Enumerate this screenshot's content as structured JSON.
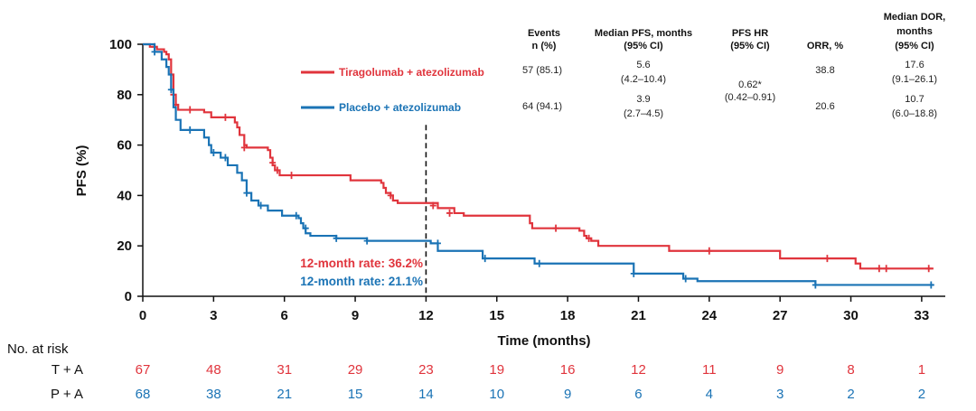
{
  "colors": {
    "tiragolumab": "#e0343c",
    "placebo": "#1a73b5",
    "axis": "#111111"
  },
  "chart_data": {
    "type": "line",
    "subtype": "kaplan-meier",
    "xlabel": "Time (months)",
    "ylabel": "PFS (%)",
    "xlim": [
      0,
      34
    ],
    "ylim": [
      0,
      100
    ],
    "xticks": [
      0,
      3,
      6,
      9,
      12,
      15,
      18,
      21,
      24,
      27,
      30,
      33
    ],
    "yticks": [
      0,
      20,
      40,
      60,
      80,
      100
    ],
    "reference_line": {
      "x": 12,
      "style": "dashed"
    },
    "series": [
      {
        "name": "Tiragolumab + atezolizumab",
        "color_key": "tiragolumab",
        "steps": [
          [
            0,
            100
          ],
          [
            0.3,
            99
          ],
          [
            0.6,
            98
          ],
          [
            0.9,
            97
          ],
          [
            1.0,
            96
          ],
          [
            1.1,
            94
          ],
          [
            1.2,
            88
          ],
          [
            1.3,
            80
          ],
          [
            1.4,
            76
          ],
          [
            1.5,
            74
          ],
          [
            2.6,
            73
          ],
          [
            2.9,
            71
          ],
          [
            3.9,
            69
          ],
          [
            4.0,
            67
          ],
          [
            4.1,
            64
          ],
          [
            4.3,
            60
          ],
          [
            4.4,
            59
          ],
          [
            5.3,
            58
          ],
          [
            5.4,
            55
          ],
          [
            5.5,
            52
          ],
          [
            5.6,
            50
          ],
          [
            5.8,
            48
          ],
          [
            8.8,
            46
          ],
          [
            10.1,
            45
          ],
          [
            10.2,
            43
          ],
          [
            10.3,
            41
          ],
          [
            10.5,
            40
          ],
          [
            10.6,
            38
          ],
          [
            10.8,
            37
          ],
          [
            12.5,
            35
          ],
          [
            13.2,
            33
          ],
          [
            13.6,
            32
          ],
          [
            16.4,
            29
          ],
          [
            16.5,
            27
          ],
          [
            17.1,
            27
          ],
          [
            18.5,
            26
          ],
          [
            18.7,
            24
          ],
          [
            18.8,
            23
          ],
          [
            19.0,
            22
          ],
          [
            19.3,
            20
          ],
          [
            22.3,
            18
          ],
          [
            27.0,
            15
          ],
          [
            30.2,
            13
          ],
          [
            30.4,
            11
          ]
        ],
        "end": 33.5,
        "censors": [
          [
            0.5,
            99
          ],
          [
            1.3,
            80
          ],
          [
            1.4,
            76
          ],
          [
            2.0,
            74
          ],
          [
            3.5,
            71
          ],
          [
            4.3,
            59
          ],
          [
            5.5,
            53
          ],
          [
            5.7,
            50
          ],
          [
            6.3,
            48
          ],
          [
            10.5,
            40
          ],
          [
            12.3,
            36
          ],
          [
            13.0,
            33
          ],
          [
            17.5,
            27
          ],
          [
            18.9,
            23
          ],
          [
            24.0,
            18
          ],
          [
            29.0,
            15
          ],
          [
            31.2,
            11
          ],
          [
            31.5,
            11
          ],
          [
            33.3,
            11
          ]
        ]
      },
      {
        "name": "Placebo + atezolizumab",
        "color_key": "placebo",
        "steps": [
          [
            0,
            100
          ],
          [
            0.5,
            97
          ],
          [
            0.8,
            94
          ],
          [
            1.0,
            91
          ],
          [
            1.1,
            88
          ],
          [
            1.2,
            82
          ],
          [
            1.3,
            75
          ],
          [
            1.4,
            70
          ],
          [
            1.6,
            66
          ],
          [
            2.6,
            63
          ],
          [
            2.8,
            60
          ],
          [
            2.9,
            57
          ],
          [
            3.3,
            55
          ],
          [
            3.6,
            52
          ],
          [
            4.0,
            49
          ],
          [
            4.2,
            46
          ],
          [
            4.4,
            41
          ],
          [
            4.6,
            38
          ],
          [
            4.9,
            36
          ],
          [
            5.3,
            34
          ],
          [
            5.9,
            32
          ],
          [
            6.6,
            31
          ],
          [
            6.7,
            29
          ],
          [
            6.8,
            27
          ],
          [
            6.9,
            25
          ],
          [
            7.1,
            24
          ],
          [
            8.2,
            23
          ],
          [
            9.5,
            22
          ],
          [
            12.2,
            21
          ],
          [
            12.5,
            18
          ],
          [
            14.4,
            15
          ],
          [
            16.6,
            13
          ],
          [
            20.8,
            9
          ],
          [
            22.9,
            7
          ],
          [
            23.5,
            6
          ],
          [
            28.5,
            4.5
          ]
        ],
        "end": 33.5,
        "censors": [
          [
            0.5,
            97
          ],
          [
            1.2,
            82
          ],
          [
            2.0,
            66
          ],
          [
            3.0,
            57
          ],
          [
            3.5,
            55
          ],
          [
            4.4,
            41
          ],
          [
            5.0,
            36
          ],
          [
            6.5,
            32
          ],
          [
            6.9,
            27
          ],
          [
            8.2,
            23
          ],
          [
            9.5,
            22
          ],
          [
            12.5,
            21
          ],
          [
            14.5,
            15
          ],
          [
            16.8,
            13
          ],
          [
            20.8,
            9
          ],
          [
            23.0,
            7
          ],
          [
            28.5,
            4.5
          ],
          [
            33.4,
            4.5
          ]
        ]
      }
    ],
    "annotations": {
      "rate_tiragolumab": "12-month rate: 36.2%",
      "rate_placebo": "12-month rate: 21.1%"
    },
    "summary_table": {
      "headers": [
        [
          "Events",
          "n (%)"
        ],
        [
          "Median PFS, months",
          "(95% CI)"
        ],
        [
          "PFS HR",
          "(95% CI)"
        ],
        [
          "ORR, %"
        ],
        [
          "Median DOR,",
          "months",
          "(95% CI)"
        ]
      ],
      "tiragolumab": {
        "events": "57 (85.1)",
        "median_pfs": "5.6",
        "median_pfs_ci": "(4.2–10.4)",
        "orr": "38.8",
        "median_dor": "17.6",
        "median_dor_ci": "(9.1–26.1)"
      },
      "placebo": {
        "events": "64 (94.1)",
        "median_pfs": "3.9",
        "median_pfs_ci": "(2.7–4.5)",
        "orr": "20.6",
        "median_dor": "10.7",
        "median_dor_ci": "(6.0–18.8)"
      },
      "hr": "0.62*",
      "hr_ci": "(0.42–0.91)"
    },
    "at_risk": {
      "title": "No. at risk",
      "rows": [
        {
          "label": "T + A",
          "color_key": "tiragolumab",
          "values": [
            67,
            48,
            31,
            29,
            23,
            19,
            16,
            12,
            11,
            9,
            8,
            1
          ]
        },
        {
          "label": "P + A",
          "color_key": "placebo",
          "values": [
            68,
            38,
            21,
            15,
            14,
            10,
            9,
            6,
            4,
            3,
            2,
            2
          ]
        }
      ]
    }
  }
}
